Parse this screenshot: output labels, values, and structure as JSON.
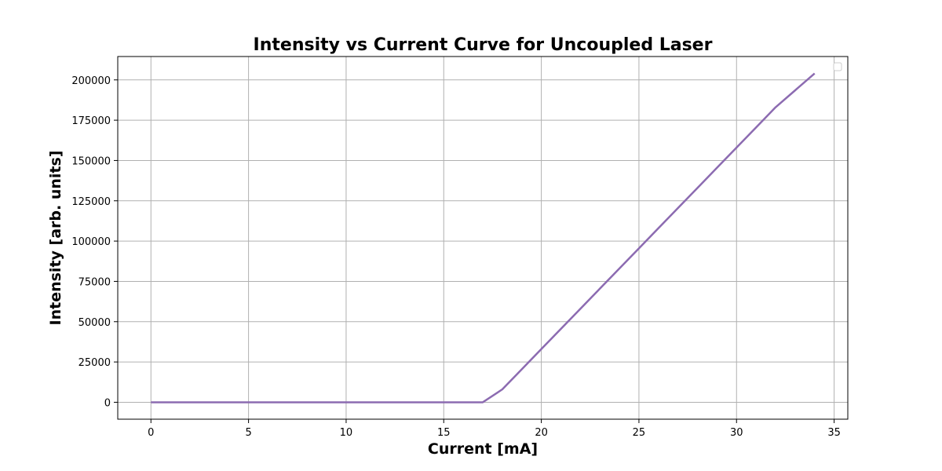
{
  "chart_data": {
    "type": "line",
    "title": "Intensity vs Current Curve for Uncoupled Laser",
    "xlabel": "Current [mA]",
    "ylabel": "Intensity [arb. units]",
    "xlim": [
      -1.7,
      35.7
    ],
    "ylim": [
      -10500,
      214500
    ],
    "xticks": [
      0,
      5,
      10,
      15,
      20,
      25,
      30,
      35
    ],
    "yticks": [
      0,
      25000,
      50000,
      75000,
      100000,
      125000,
      150000,
      175000,
      200000
    ],
    "grid": true,
    "legend": "top-right",
    "series": [
      {
        "color": "#8c6bb1",
        "x": [
          0,
          1,
          2,
          3,
          4,
          5,
          6,
          7,
          8,
          9,
          10,
          11,
          12,
          13,
          14,
          15,
          16,
          17,
          18,
          19,
          20,
          21,
          22,
          23,
          24,
          25,
          26,
          27,
          28,
          29,
          30,
          31,
          32,
          33,
          34
        ],
        "y": [
          0,
          0,
          0,
          0,
          0,
          0,
          0,
          0,
          0,
          0,
          0,
          0,
          0,
          0,
          0,
          0,
          0,
          0,
          8000,
          20500,
          33000,
          45500,
          58000,
          70500,
          83000,
          95500,
          108000,
          120500,
          133000,
          145500,
          158000,
          170500,
          183000,
          193500,
          204000
        ]
      }
    ]
  }
}
